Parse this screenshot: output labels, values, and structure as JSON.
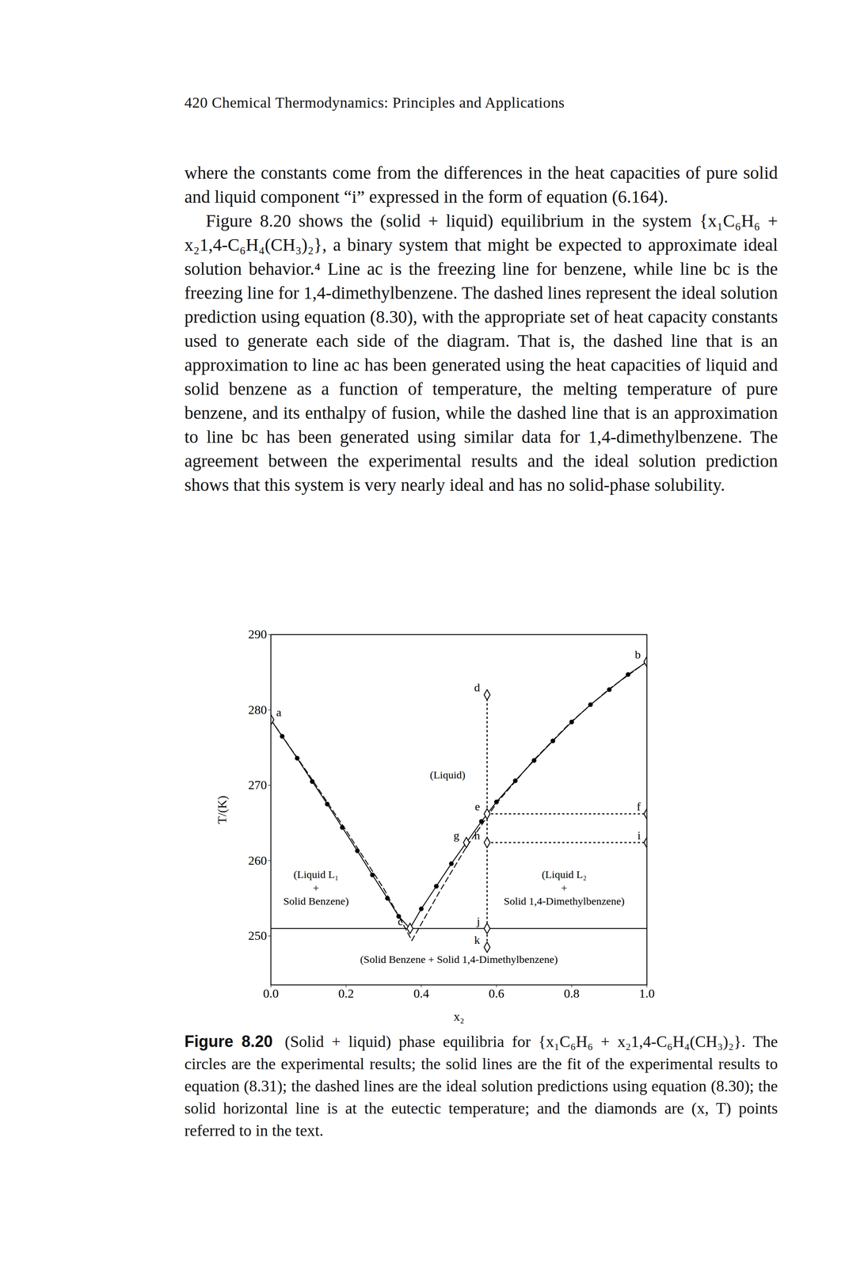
{
  "page_header": "420 Chemical Thermodynamics: Principles and Applications",
  "paragraphs": [
    "where the constants come from the differences in the heat capacities of pure solid and liquid component “i” expressed in the form of equation (6.164).",
    "Figure 8.20 shows the (solid + liquid) equilibrium in the system {x₁C₆H₆ + x₂1,4-C₆H₄(CH₃)₂}, a binary system that might be expected to approximate ideal solution behavior.⁴ Line ac is the freezing line for benzene, while line bc is the freezing line for 1,4-dimethylbenzene. The dashed lines represent the ideal solution prediction using equation (8.30), with the appropriate set of heat capacity constants used to generate each side of the diagram. That is, the dashed line that is an approximation to line ac has been generated using the heat capacities of liquid and solid benzene as a function of temperature, the melting temperature of pure benzene, and its enthalpy of fusion, while the dashed line that is an approximation to line bc has been generated using similar data for 1,4-dimethylbenzene. The agreement between the experimental results and the ideal solution prediction shows that this system is very nearly ideal and has no solid-phase solubility."
  ],
  "chart_data": {
    "type": "line",
    "x_label": "x₂",
    "y_label": "T/(K)",
    "xlim": [
      0,
      1
    ],
    "ylim": [
      243.5,
      290
    ],
    "xticks": [
      {
        "value": 0,
        "label": "0.0"
      },
      {
        "value": 0.2,
        "label": "0.2"
      },
      {
        "value": 0.4,
        "label": "0.4"
      },
      {
        "value": 0.6,
        "label": "0.6"
      },
      {
        "value": 0.8,
        "label": "0.8"
      },
      {
        "value": 1,
        "label": "1.0"
      }
    ],
    "yticks": [
      250,
      260,
      270,
      280,
      290
    ],
    "grid": false,
    "series": [
      {
        "type": "line",
        "marker": "circle",
        "line_style": "solid",
        "x": [
          0,
          0.03,
          0.07,
          0.11,
          0.15,
          0.19,
          0.23,
          0.27,
          0.31,
          0.34,
          0.37
        ],
        "values": [
          278.7,
          276.5,
          273.6,
          270.5,
          267.5,
          264.4,
          261.3,
          258.1,
          255.0,
          252.6,
          251.0
        ]
      },
      {
        "type": "line",
        "marker": "circle",
        "line_style": "solid",
        "x": [
          0.37,
          0.4,
          0.44,
          0.48,
          0.52,
          0.56,
          0.6,
          0.65,
          0.7,
          0.75,
          0.8,
          0.85,
          0.9,
          0.95,
          1.0
        ],
        "values": [
          251.0,
          253.6,
          256.6,
          259.6,
          262.4,
          265.2,
          267.8,
          270.6,
          273.3,
          275.9,
          278.4,
          280.7,
          282.7,
          284.7,
          286.4
        ]
      },
      {
        "type": "line",
        "line_style": "dashed",
        "x": [
          0,
          0.1,
          0.2,
          0.3,
          0.375
        ],
        "values": [
          278.7,
          271.5,
          264.0,
          256.3,
          249.4
        ]
      },
      {
        "type": "line",
        "line_style": "dashed",
        "x": [
          0.375,
          0.45,
          0.52,
          0.6,
          0.7,
          0.8,
          0.9,
          1.0
        ],
        "values": [
          249.4,
          256.0,
          261.8,
          267.6,
          273.4,
          278.5,
          282.8,
          286.4
        ]
      },
      {
        "type": "line",
        "line_style": "solid",
        "x": [
          0,
          1
        ],
        "values": [
          251.0,
          251.0
        ]
      },
      {
        "type": "line",
        "line_style": "dotted",
        "x": [
          0.575,
          0.575
        ],
        "values": [
          282.0,
          248.5
        ]
      },
      {
        "type": "line",
        "line_style": "dotted",
        "x": [
          0.575,
          1.0
        ],
        "values": [
          266.2,
          266.2
        ]
      },
      {
        "type": "line",
        "line_style": "dotted",
        "x": [
          0.575,
          1.0
        ],
        "values": [
          262.4,
          262.4
        ]
      },
      {
        "type": "scatter",
        "marker": "diamond",
        "x": [
          0,
          1.0,
          0.37,
          0.575,
          0.575,
          1.0,
          0.52,
          0.575,
          1.0,
          0.575,
          0.575
        ],
        "values": [
          278.7,
          286.4,
          251.0,
          282.0,
          266.2,
          266.2,
          262.4,
          262.4,
          262.4,
          251.0,
          248.5
        ],
        "labels": [
          "a",
          "b",
          "c",
          "d",
          "e",
          "f",
          "g",
          "h",
          "i",
          "j",
          "k"
        ]
      }
    ],
    "annotations": [
      {
        "text": "(Liquid)",
        "x": 0.47,
        "y": 271.5
      },
      {
        "text": "(Liquid L₁\n+\nSolid Benzene)",
        "x": 0.12,
        "y": 256.5
      },
      {
        "text": "(Liquid L₂\n+\nSolid 1,4-Dimethylbenzene)",
        "x": 0.78,
        "y": 256.5
      },
      {
        "text": "(Solid Benzene + Solid 1,4-Dimethylbenzene)",
        "x": 0.5,
        "y": 247.0
      }
    ]
  },
  "caption": {
    "label": "Figure 8.20",
    "text": "(Solid + liquid) phase equilibria for {x₁C₆H₆ + x₂1,4-C₆H₄(CH₃)₂}. The circles are the experimental results; the solid lines are the fit of the experimental results to equation (8.31); the dashed lines are the ideal solution predictions using equation (8.30); the solid horizontal line is at the eutectic temperature; and the diamonds are (x, T) points referred to in the text."
  }
}
